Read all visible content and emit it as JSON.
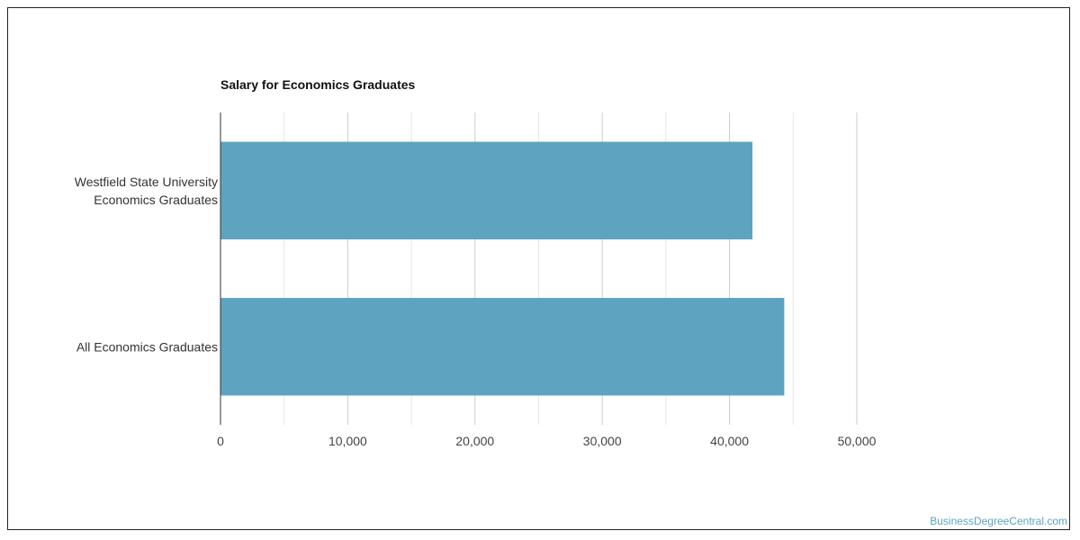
{
  "chart_data": {
    "type": "bar",
    "orientation": "horizontal",
    "title": "Salary for Economics Graduates",
    "categories": [
      [
        "Westfield State University",
        "Economics Graduates"
      ],
      [
        "All Economics Graduates"
      ]
    ],
    "values": [
      41800,
      44300
    ],
    "xlim": [
      0,
      50000
    ],
    "ticks": [
      0,
      10000,
      20000,
      30000,
      40000,
      50000
    ],
    "tick_labels": [
      "0",
      "10,000",
      "20,000",
      "30,000",
      "40,000",
      "50,000"
    ],
    "grid": true,
    "bar_color": "#5ea3bf",
    "grid_color": "#dddddd",
    "axis_color": "#333333"
  },
  "watermark": "BusinessDegreeCentral.com"
}
